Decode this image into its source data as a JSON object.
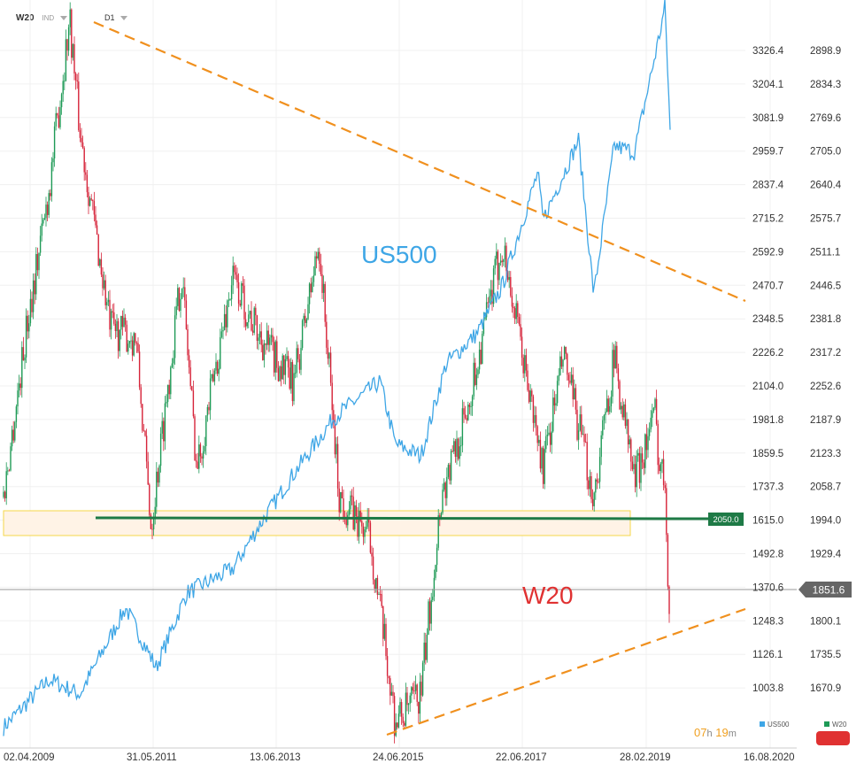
{
  "header": {
    "symbol": "W20",
    "exchange": "IND",
    "interval": "D1"
  },
  "labels": {
    "us500": "US500",
    "w20": "W20"
  },
  "level_tag": "2050.0",
  "price_tag": "1851.6",
  "legend": {
    "left": "US500",
    "right": "W20"
  },
  "timer": {
    "hours": "07",
    "h": "h",
    "minutes": "19",
    "m": "m"
  },
  "chart_data": {
    "type": "line",
    "x_ticks": [
      "02.04.2009",
      "31.05.2011",
      "13.06.2013",
      "24.06.2015",
      "22.06.2017",
      "28.02.2019",
      "16.08.2020"
    ],
    "left_axis": {
      "series": "US500",
      "ticks": [
        "3326.4",
        "3204.1",
        "3081.9",
        "2959.7",
        "2837.4",
        "2715.2",
        "2592.9",
        "2470.7",
        "2348.5",
        "2226.2",
        "2104.0",
        "1981.8",
        "1859.5",
        "1737.3",
        "1615.0",
        "1492.8",
        "1370.6",
        "1248.3",
        "1126.1",
        "1003.8"
      ],
      "range": [
        880,
        3390
      ]
    },
    "right_axis": {
      "series": "W20",
      "ticks": [
        "2898.9",
        "2834.3",
        "2769.6",
        "2705.0",
        "2640.4",
        "2575.7",
        "2511.1",
        "2446.5",
        "2381.8",
        "2317.2",
        "2252.6",
        "2187.9",
        "2123.3",
        "2058.7",
        "1994.0",
        "1929.4",
        "1864.8",
        "1800.1",
        "1735.5",
        "1670.9"
      ],
      "range": [
        1605,
        2932
      ]
    },
    "series": [
      {
        "name": "US500",
        "color": "#3ea6e6",
        "x": [
          "2009-04",
          "2010-01",
          "2010-07",
          "2011-04",
          "2011-10",
          "2012-04",
          "2013-01",
          "2013-06",
          "2014-01",
          "2014-09",
          "2015-06",
          "2015-09",
          "2016-02",
          "2016-07",
          "2017-01",
          "2017-06",
          "2018-01",
          "2018-02",
          "2018-09",
          "2018-12",
          "2019-04",
          "2019-08",
          "2020-01",
          "2020-02",
          "2020-03"
        ],
        "values": [
          950,
          1110,
          1060,
          1350,
          1150,
          1400,
          1480,
          1620,
          1800,
          1990,
          2110,
          1900,
          1860,
          2170,
          2270,
          2430,
          2810,
          2650,
          2920,
          2400,
          2900,
          2880,
          3280,
          3370,
          2950
        ]
      },
      {
        "name": "W20",
        "color": "#e03131",
        "x": [
          "2009-04",
          "2009-09",
          "2010-01",
          "2010-05",
          "2010-07",
          "2011-01",
          "2011-06",
          "2011-09",
          "2012-03",
          "2012-06",
          "2013-01",
          "2013-06",
          "2014-01",
          "2014-06",
          "2014-10",
          "2015-04",
          "2015-09",
          "2016-02",
          "2016-06",
          "2016-11",
          "2017-06",
          "2017-11",
          "2018-02",
          "2018-06",
          "2018-12",
          "2019-04",
          "2019-08",
          "2019-12",
          "2020-01",
          "2020-02",
          "2020-03"
        ],
        "values": [
          2050,
          2380,
          2600,
          2900,
          2700,
          2350,
          2330,
          2000,
          2450,
          2100,
          2440,
          2340,
          2250,
          2500,
          2050,
          1980,
          1650,
          1700,
          2050,
          2200,
          2500,
          2250,
          2100,
          2300,
          2050,
          2300,
          2080,
          2200,
          2100,
          2090,
          1790
        ]
      }
    ],
    "horizontal_level": 2050.0,
    "current_price": 1851.6,
    "support_zone": [
      2038,
      2068
    ]
  }
}
